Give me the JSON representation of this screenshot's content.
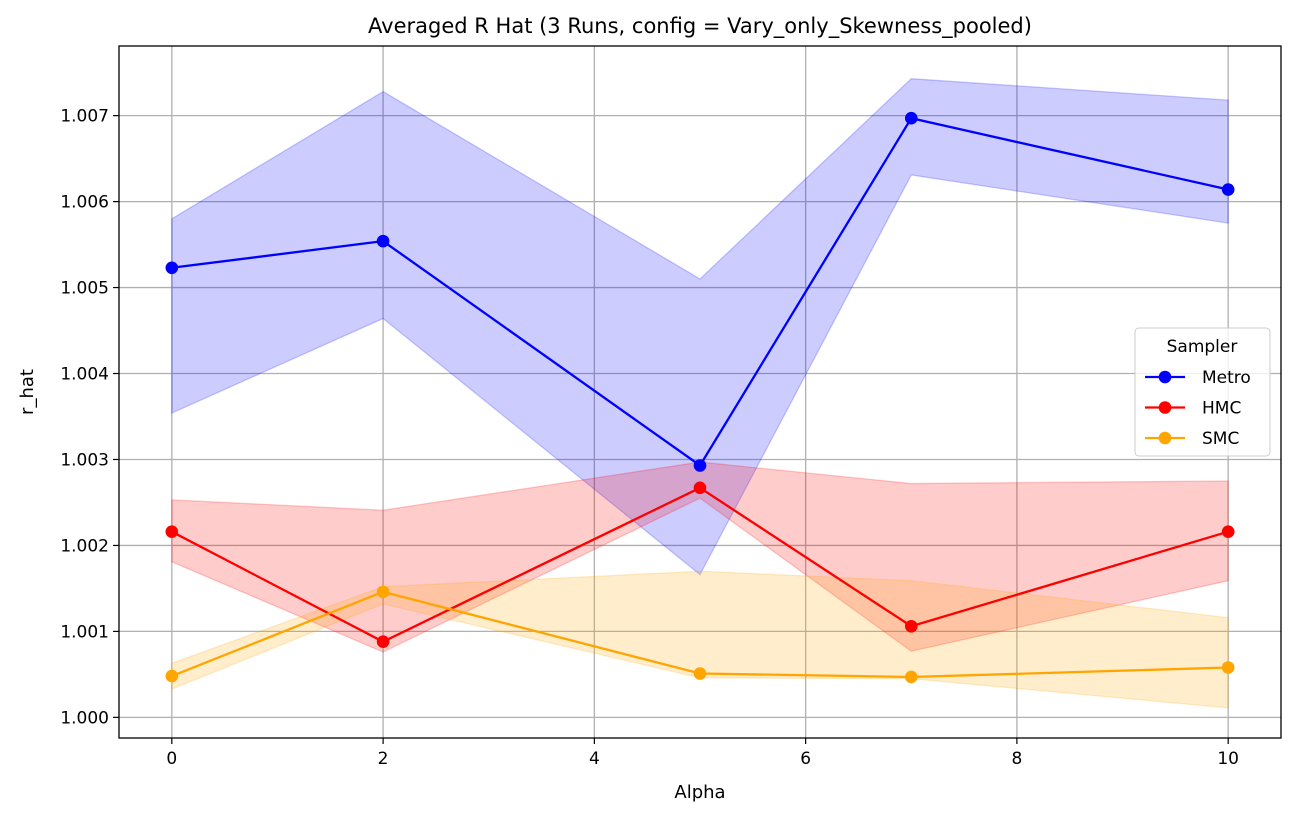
{
  "chart_data": {
    "type": "line",
    "title": "Averaged R Hat (3 Runs, config = Vary_only_Skewness_pooled)",
    "xlabel": "Alpha",
    "ylabel": "r_hat",
    "xlim": [
      -0.5,
      10.5
    ],
    "ylim": [
      0.99976,
      1.00781
    ],
    "xticks": [
      0,
      2,
      4,
      6,
      8,
      10
    ],
    "xtick_labels": [
      "0",
      "2",
      "4",
      "6",
      "8",
      "10"
    ],
    "yticks": [
      1.0,
      1.001,
      1.002,
      1.003,
      1.004,
      1.005,
      1.006,
      1.007
    ],
    "ytick_labels": [
      "1.000",
      "1.001",
      "1.002",
      "1.003",
      "1.004",
      "1.005",
      "1.006",
      "1.007"
    ],
    "grid": true,
    "legend": {
      "title": "Sampler",
      "placement": "center-right"
    },
    "x": [
      0,
      2,
      5,
      7,
      10
    ],
    "series": [
      {
        "name": "Metro",
        "color": "#0000ff",
        "values": [
          1.00523,
          1.00554,
          1.00293,
          1.00697,
          1.00614
        ],
        "band_lower": [
          1.00354,
          1.00464,
          1.00166,
          1.00631,
          1.00575
        ],
        "band_upper": [
          1.0058,
          1.00728,
          1.0051,
          1.00743,
          1.00718
        ]
      },
      {
        "name": "HMC",
        "color": "#ff0000",
        "values": [
          1.00216,
          1.00088,
          1.00267,
          1.00106,
          1.00216
        ],
        "band_lower": [
          1.00181,
          1.00076,
          1.00255,
          1.00077,
          1.00159
        ],
        "band_upper": [
          1.00253,
          1.00241,
          1.00297,
          1.00272,
          1.00275
        ]
      },
      {
        "name": "SMC",
        "color": "#ffa500",
        "values": [
          1.00048,
          1.00146,
          1.00051,
          1.00047,
          1.00058
        ],
        "band_lower": [
          1.00033,
          1.00132,
          1.00046,
          1.00045,
          1.00011
        ],
        "band_upper": [
          1.00063,
          1.00152,
          1.0017,
          1.00159,
          1.00116
        ]
      }
    ]
  }
}
